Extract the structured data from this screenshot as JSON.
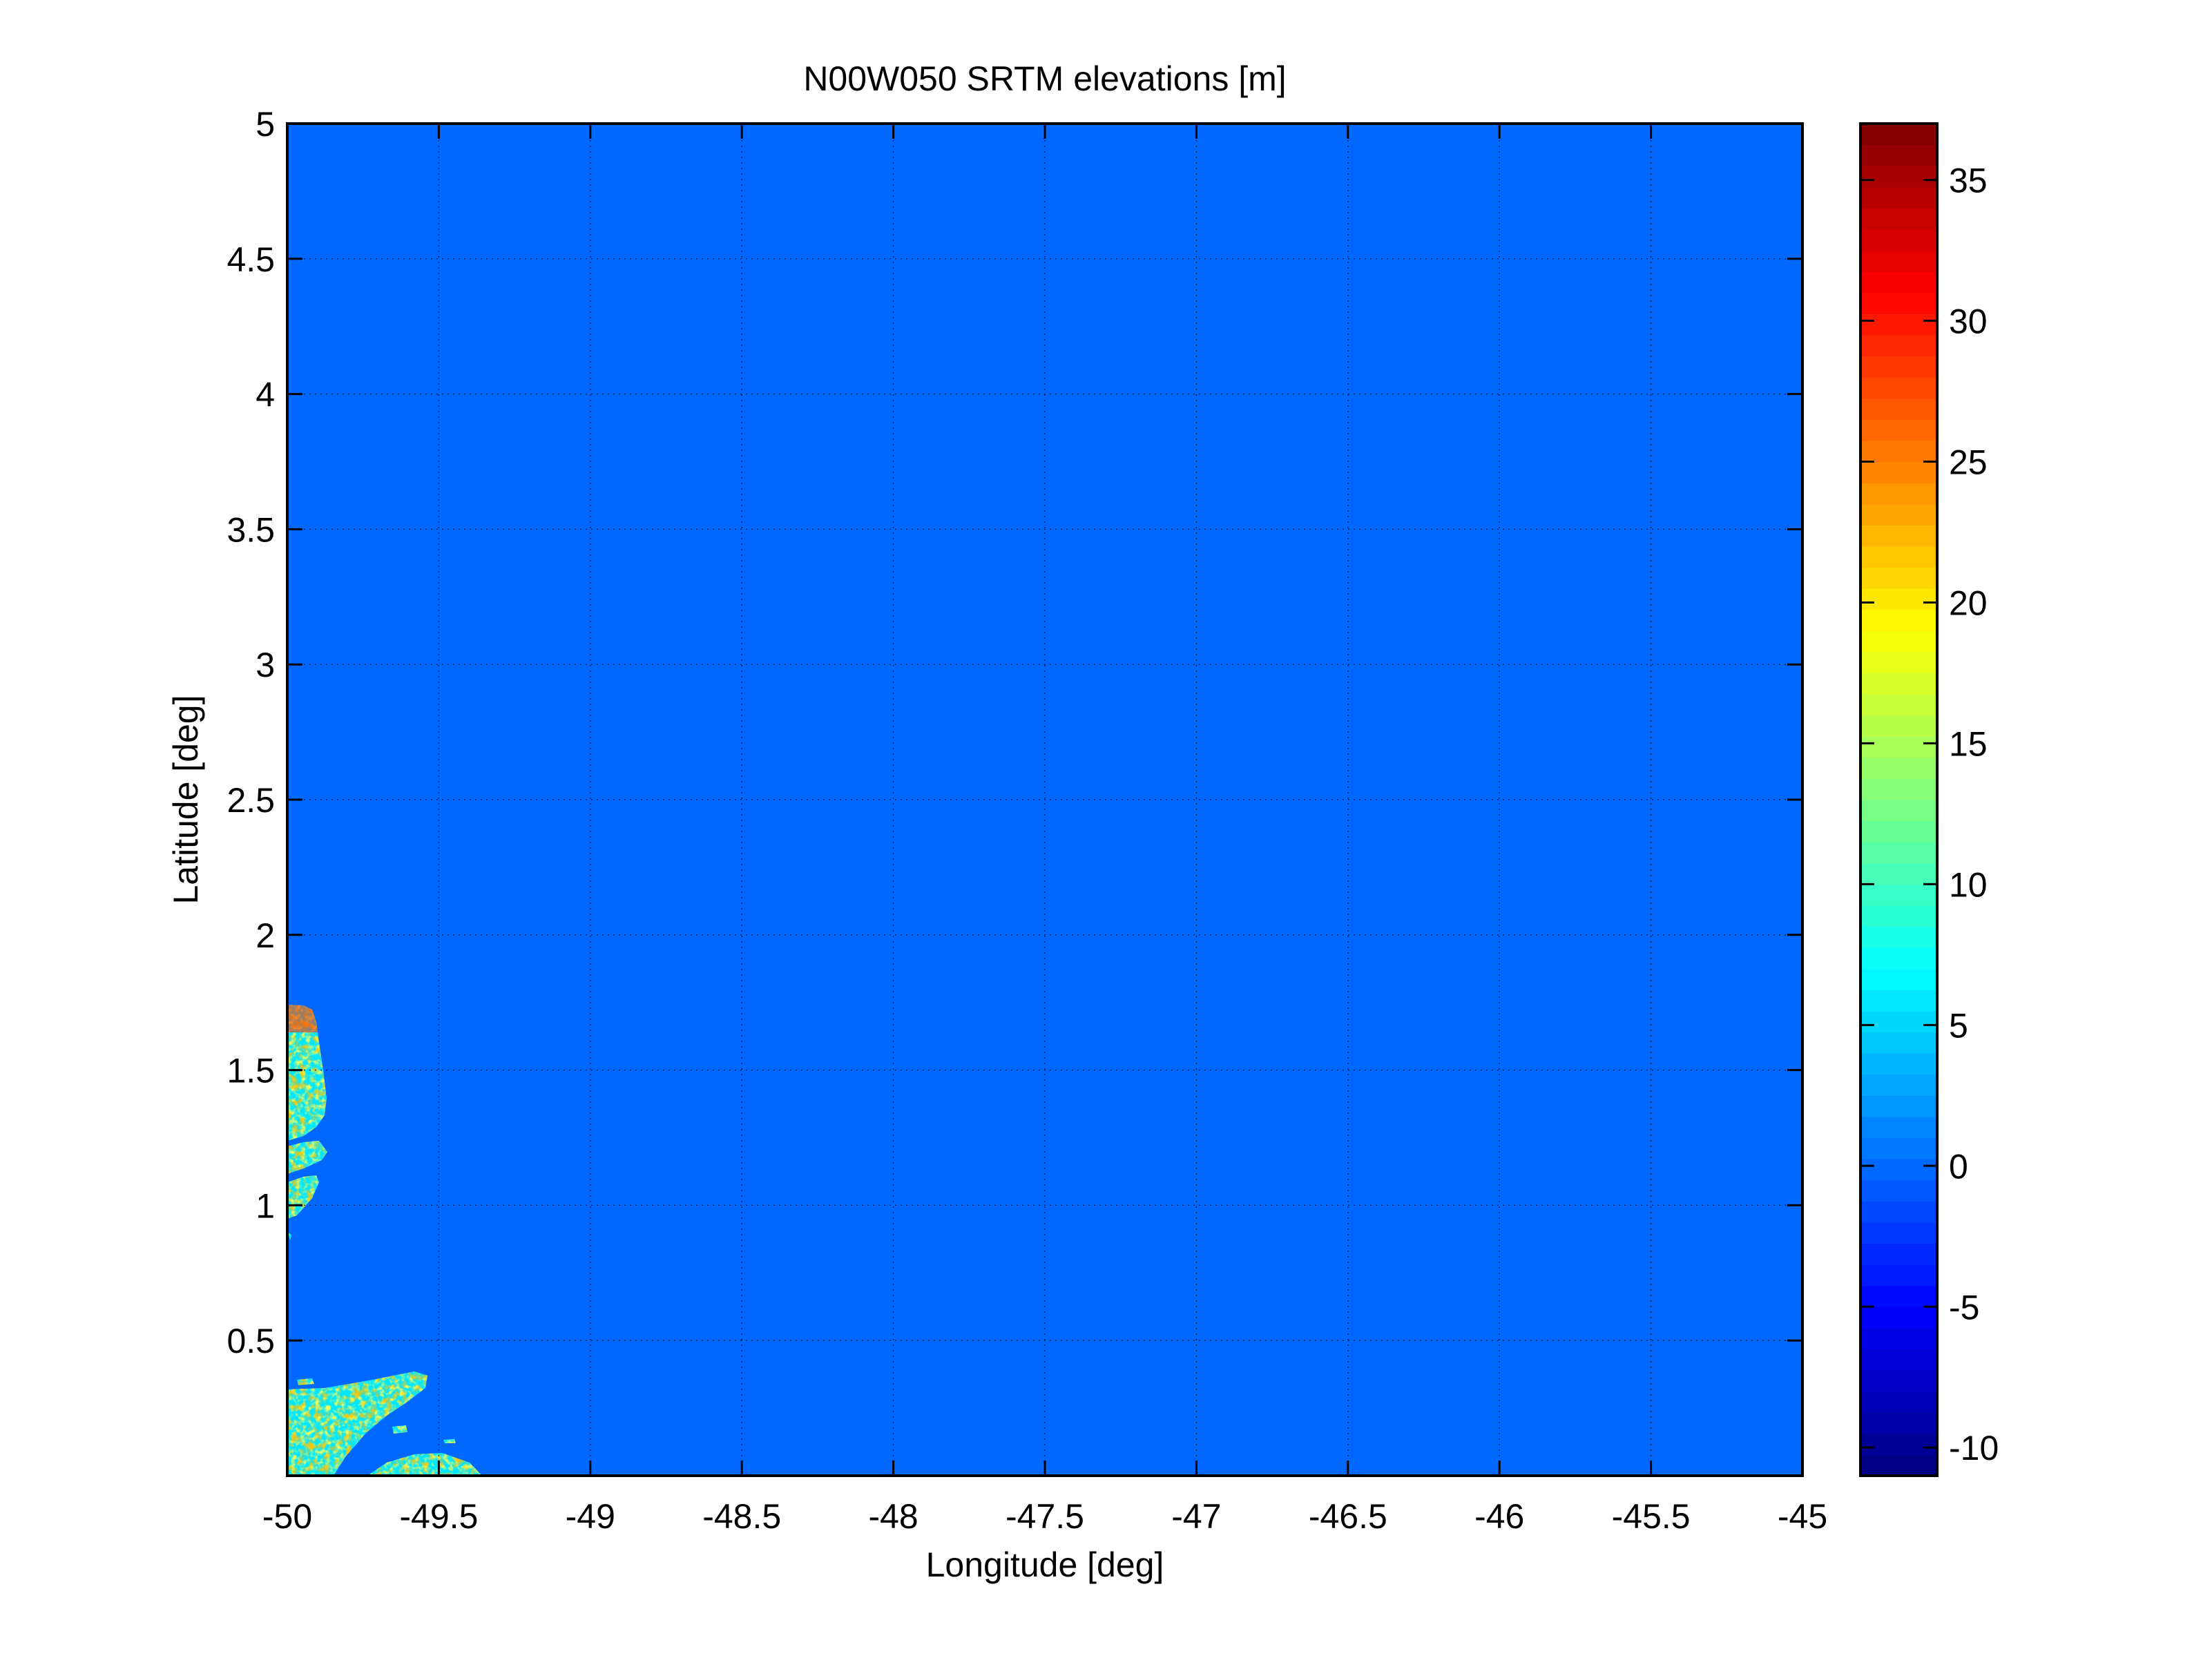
{
  "chart_data": {
    "type": "heatmap",
    "title": "N00W050 SRTM elevations [m]",
    "xlabel": "Longitude [deg]",
    "ylabel": "Latitude [deg]",
    "xlim": [
      -50,
      -45
    ],
    "ylim": [
      0,
      5
    ],
    "xticks": [
      -50,
      -49.5,
      -49,
      -48.5,
      -48,
      -47.5,
      -47,
      -46.5,
      -46,
      -45.5,
      -45
    ],
    "xtick_labels": [
      "-50",
      "-49.5",
      "-49",
      "-48.5",
      "-48",
      "-47.5",
      "-47",
      "-46.5",
      "-46",
      "-45.5",
      "-45"
    ],
    "yticks": [
      0.5,
      1,
      1.5,
      2,
      2.5,
      3,
      3.5,
      4,
      4.5,
      5
    ],
    "ytick_labels": [
      "0.5",
      "1",
      "1.5",
      "2",
      "2.5",
      "3",
      "3.5",
      "4",
      "4.5",
      "5"
    ],
    "grid": true,
    "colormap": "jet",
    "background_value": 0,
    "colorbar": {
      "location": "right",
      "clim": [
        -11,
        37
      ],
      "ticks": [
        -10,
        -5,
        0,
        5,
        10,
        15,
        20,
        25,
        30,
        35
      ],
      "tick_labels": [
        "-10",
        "-5",
        "0",
        "5",
        "10",
        "15",
        "20",
        "25",
        "30",
        "35"
      ]
    },
    "land_regions": "small coastal land areas near longitude -50 to -49.4, latitude 0 to 1.75, elevations 0-37 m"
  }
}
